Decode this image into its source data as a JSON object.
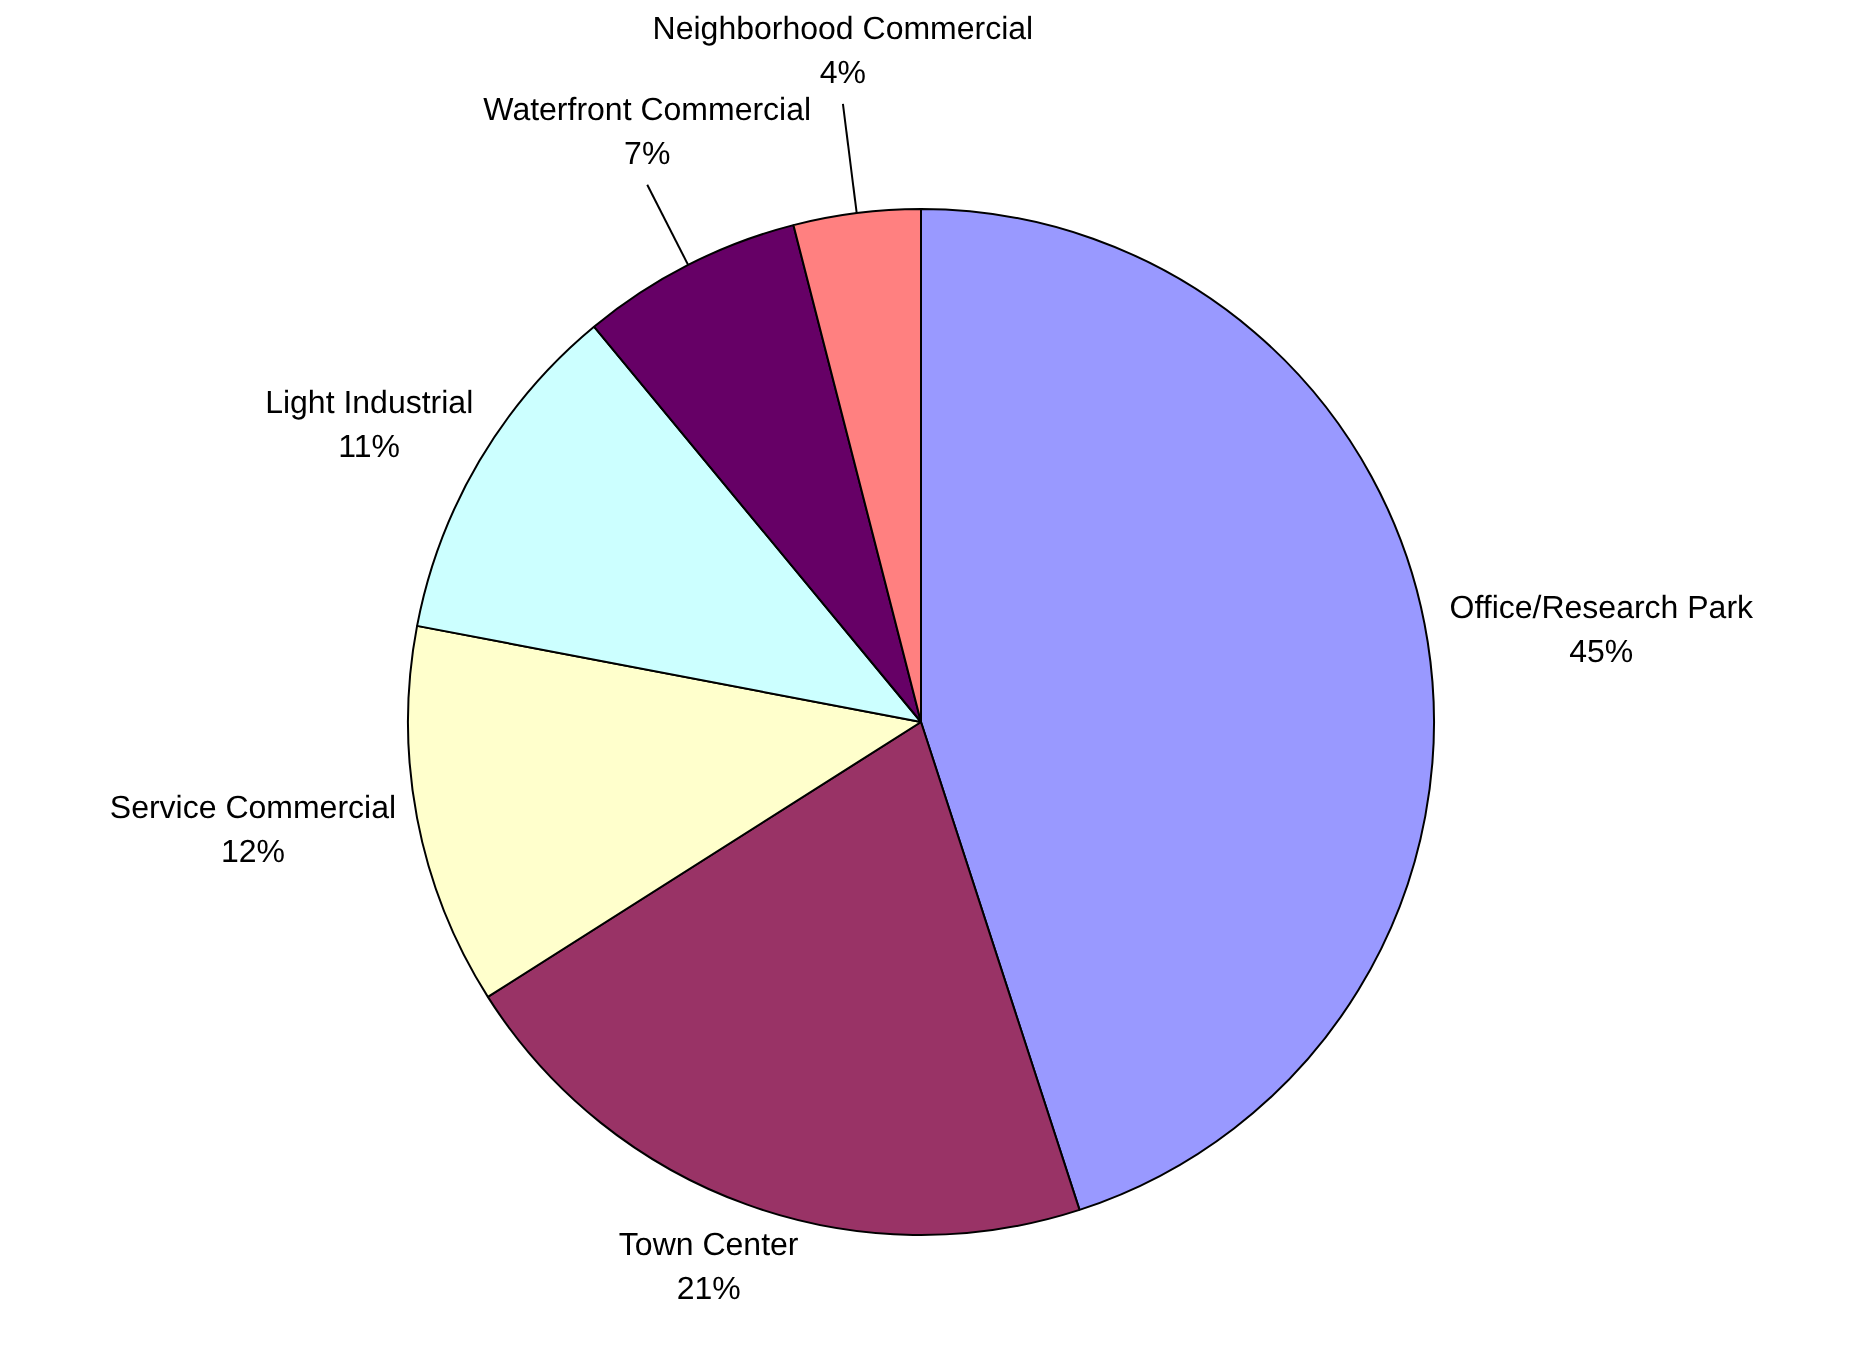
{
  "chart_data": {
    "type": "pie",
    "categories": [
      "Office/Research Park",
      "Town Center",
      "Service Commercial",
      "Light Industrial",
      "Waterfront Commercial",
      "Neighborhood Commercial"
    ],
    "values": [
      45,
      21,
      12,
      11,
      7,
      4
    ],
    "value_labels": [
      "45%",
      "21%",
      "12%",
      "11%",
      "7%",
      "4%"
    ],
    "colors": [
      "#9999ff",
      "#993366",
      "#ffffcc",
      "#ccffff",
      "#660066",
      "#ff8080"
    ],
    "legend": false
  }
}
